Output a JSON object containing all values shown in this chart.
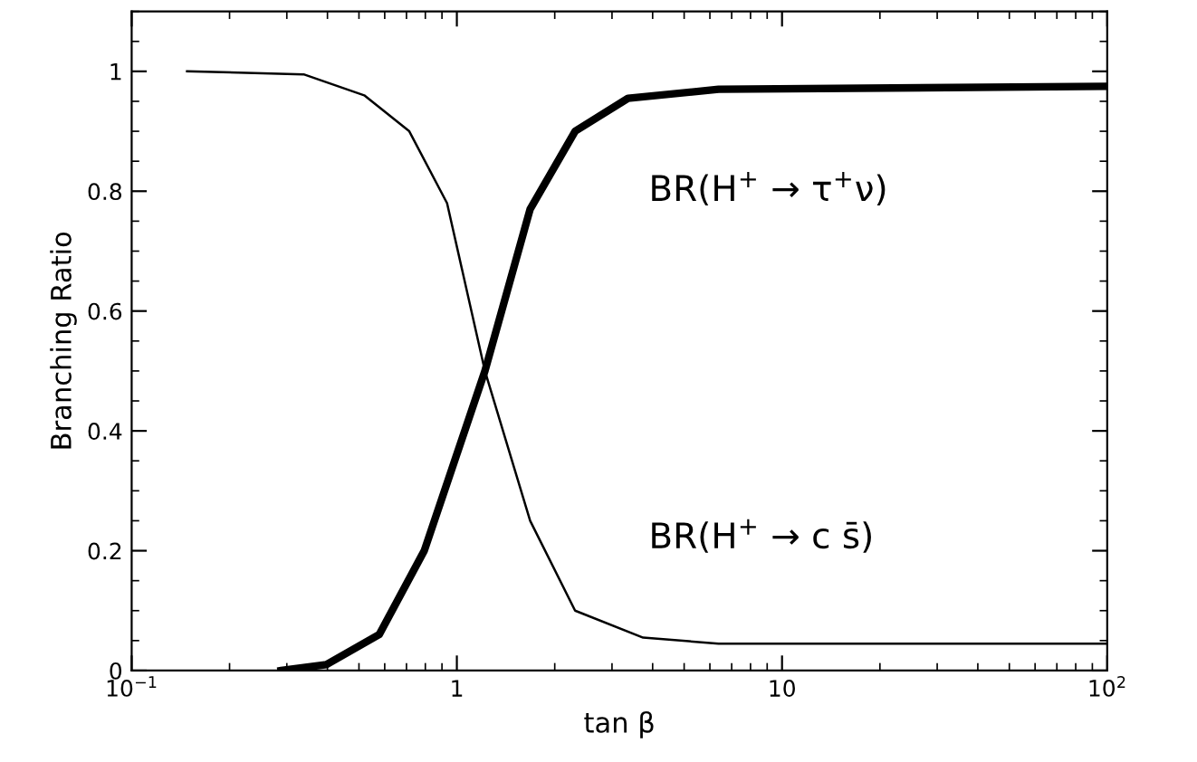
{
  "chart_data": {
    "type": "line",
    "xlabel": "tan β",
    "ylabel": "Branching Ratio",
    "log": "x",
    "xlim": [
      0.1,
      100
    ],
    "ylim": [
      0,
      1.1
    ],
    "xticks": [
      {
        "value": 0.1,
        "label": "10$^{−1}$"
      },
      1,
      10,
      {
        "value": 100,
        "label": "10$^{2}$"
      }
    ],
    "yticks": [
      0,
      0.2,
      0.4,
      0.6,
      0.8,
      1
    ],
    "grid": false,
    "legend": false,
    "marker": "none",
    "line_style": "solid",
    "series": [
      {
        "name": "BR(H$^{+}$ → c s̄)",
        "color": "#000000",
        "x": [
          0.148,
          0.338,
          0.519,
          0.714,
          0.933,
          1.22,
          1.68,
          2.31,
          3.74,
          6.38,
          100
        ],
        "values": [
          1.0,
          0.995,
          0.96,
          0.9,
          0.78,
          0.5,
          0.25,
          0.1,
          0.055,
          0.045,
          0.045
        ]
      },
      {
        "name": "BR(H$^{+}$ → τ$^{+}$ν)",
        "color": "#000000",
        "x": [
          0.288,
          0.397,
          0.577,
          0.794,
          1.22,
          1.68,
          2.31,
          3.36,
          6.38,
          100
        ],
        "values": [
          0,
          0.01,
          0.06,
          0.2,
          0.5,
          0.77,
          0.9,
          0.955,
          0.97,
          0.975
        ]
      }
    ]
  }
}
